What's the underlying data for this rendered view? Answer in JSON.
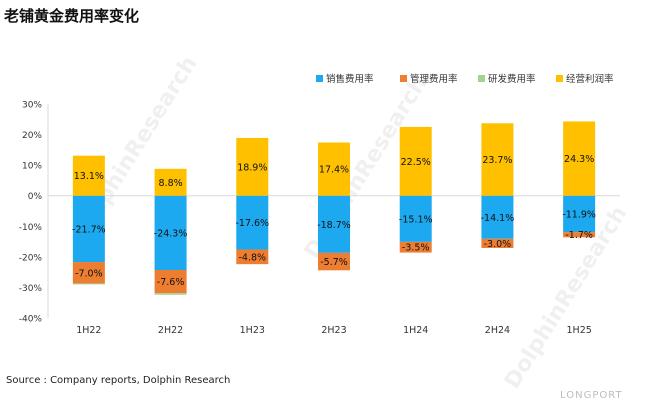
{
  "title": "老铺黄金费用率变化",
  "source": "Source : Company reports, Dolphin Research",
  "brand": "LONGPORT",
  "watermark": "DolphinResearch",
  "colors": {
    "selling": "#1da9f0",
    "admin": "#ed7d31",
    "rd": "#a9d18e",
    "margin": "#ffc000",
    "axis": "#d9d9d9",
    "text": "#333333"
  },
  "chart_data": {
    "type": "bar",
    "stacked": true,
    "categories": [
      "1H22",
      "2H22",
      "1H23",
      "2H23",
      "1H24",
      "2H24",
      "1H25"
    ],
    "series": [
      {
        "name": "销售费用率",
        "values": [
          -21.7,
          -24.3,
          -17.6,
          -18.7,
          -15.1,
          -14.1,
          -11.9
        ],
        "labels": [
          "-21.7%",
          "-24.3%",
          "-17.6%",
          "-18.7%",
          "-15.1%",
          "-14.1%",
          "-11.9%"
        ]
      },
      {
        "name": "管理费用率",
        "values": [
          -7.0,
          -7.6,
          -4.8,
          -5.7,
          -3.5,
          -3.0,
          -1.7
        ],
        "labels": [
          "-7.0%",
          "-7.6%",
          "-4.8%",
          "-5.7%",
          "-3.5%",
          "-3.0%",
          "-1.7%"
        ]
      },
      {
        "name": "研发费用率",
        "values": [
          -0.3,
          -0.5,
          0,
          0,
          0,
          0,
          0
        ],
        "labels": [
          "",
          "",
          "",
          "",
          "",
          "",
          ""
        ]
      },
      {
        "name": "经营利润率",
        "values": [
          13.1,
          8.8,
          18.9,
          17.4,
          22.5,
          23.7,
          24.3
        ],
        "labels": [
          "13.1%",
          "8.8%",
          "18.9%",
          "17.4%",
          "22.5%",
          "23.7%",
          "24.3%"
        ]
      }
    ],
    "ylim": [
      -40,
      30
    ],
    "yticks": [
      30,
      20,
      10,
      0,
      -10,
      -20,
      -30,
      -40
    ],
    "ytick_labels": [
      "30%",
      "20%",
      "10%",
      "0%",
      "-10%",
      "-20%",
      "-30%",
      "-40%"
    ],
    "legend_position": "top-right",
    "grid": false
  }
}
